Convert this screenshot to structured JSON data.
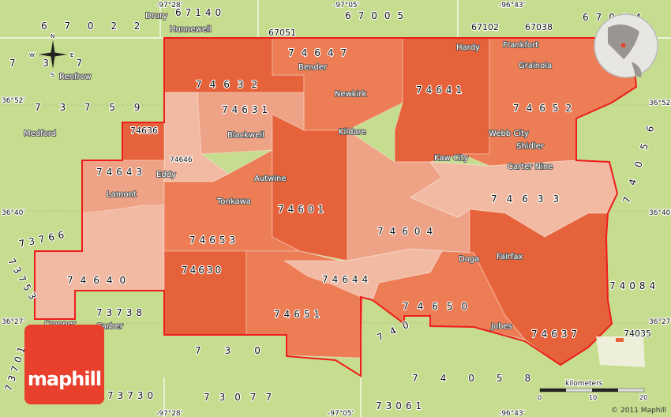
{
  "map": {
    "colors": {
      "background": "#c6dc8e",
      "boundary": "#ee1c1c",
      "dark": "#e6623b",
      "medium": "#ec7d55",
      "light": "#efa386",
      "lighter": "#f2baa2"
    },
    "zips": [
      "67140",
      "6 7 0 2 2",
      "67051",
      "67005",
      "67102",
      "67038",
      "67004",
      "7 3 7 5 9",
      "7  3  7",
      "74647",
      "74632",
      "74631",
      "74636",
      "74646",
      "74643",
      "74641",
      "74652",
      "74633",
      "74601",
      "74604",
      "74653",
      "74630",
      "74640",
      "74644",
      "74651",
      "74650",
      "74637",
      "74035",
      "74084",
      "73766",
      "73753",
      "73738",
      "73701",
      "73730",
      "730",
      "73077",
      "73061",
      "74058",
      "740",
      "74056"
    ],
    "places": [
      "Drury",
      "Hunnewell",
      "Renfrow",
      "Medford",
      "Bender",
      "Newkirk",
      "Blackwell",
      "Kildare",
      "Autwine",
      "Tonkawa",
      "Eddy",
      "Lamont",
      "Hardy",
      "Frankfort",
      "Grainola",
      "Webb City",
      "Shidler",
      "Kaw City",
      "Carter Nine",
      "Doga",
      "Fairfax",
      "Jobes",
      "Carber",
      "Cropper"
    ],
    "coords": [
      "-97°28'",
      "-97°05'",
      "-96°43'",
      "36°52'",
      "36°40'",
      "36°27'"
    ],
    "compass": {
      "n": "N",
      "s": "S",
      "e": "E",
      "w": "W"
    },
    "scale": {
      "unit": "kilometers",
      "ticks": [
        "0",
        "10",
        "20"
      ]
    },
    "logo": "maphill",
    "copyright": "© 2011 Maphill"
  }
}
